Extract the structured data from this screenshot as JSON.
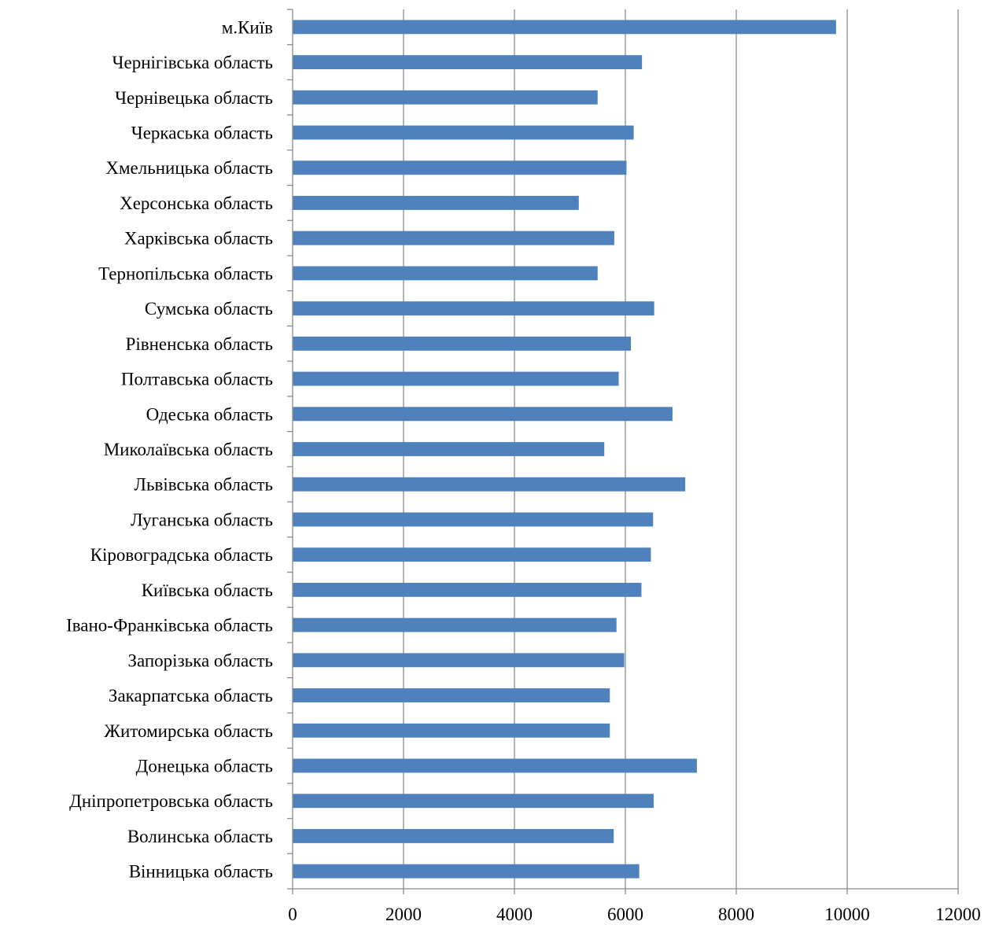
{
  "chart_data": {
    "type": "bar",
    "orientation": "horizontal",
    "title": "",
    "xlabel": "",
    "ylabel": "",
    "xlim": [
      0,
      12000
    ],
    "x_ticks": [
      0,
      2000,
      4000,
      6000,
      8000,
      10000,
      12000
    ],
    "grid": "vertical",
    "legend": "none",
    "bar_color": "#4f81bd",
    "categories": [
      "м.Київ",
      "Чернігівська область",
      "Чернівецька область",
      "Черкаська область",
      "Хмельницька область",
      "Херсонська область",
      "Харківська область",
      "Тернопільська область",
      "Сумська область",
      "Рівненська область",
      "Полтавська область",
      "Одеська область",
      "Миколаївська область",
      "Львівська область",
      "Луганська область",
      "Кіровоградська область",
      "Київська область",
      "Івано-Франківська область",
      "Запорізька область",
      "Закарпатська область",
      "Житомирська область",
      "Донецька область",
      "Дніпропетровська область",
      "Волинська область",
      "Вінницька область"
    ],
    "values": [
      9800,
      6300,
      5500,
      6150,
      6020,
      5160,
      5800,
      5500,
      6520,
      6100,
      5880,
      6850,
      5620,
      7080,
      6500,
      6460,
      6290,
      5840,
      5980,
      5720,
      5720,
      7290,
      6510,
      5790,
      6250
    ]
  }
}
